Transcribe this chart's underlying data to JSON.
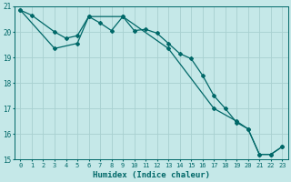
{
  "title": "",
  "xlabel": "Humidex (Indice chaleur)",
  "bg_color": "#c5e8e8",
  "grid_color": "#a8d0d0",
  "line_color": "#006868",
  "xlim": [
    -0.5,
    23.5
  ],
  "ylim": [
    15,
    21
  ],
  "xticks": [
    0,
    1,
    2,
    3,
    4,
    5,
    6,
    7,
    8,
    9,
    10,
    11,
    12,
    13,
    14,
    15,
    16,
    17,
    18,
    19,
    20,
    21,
    22,
    23
  ],
  "yticks": [
    15,
    16,
    17,
    18,
    19,
    20,
    21
  ],
  "line1_x": [
    0,
    1,
    3,
    4,
    5,
    6,
    7,
    8,
    9,
    10,
    11,
    12,
    13,
    14,
    15,
    16,
    17,
    18,
    19,
    20,
    21,
    22,
    23
  ],
  "line1_y": [
    20.85,
    20.65,
    20.0,
    19.75,
    19.85,
    20.6,
    20.35,
    20.05,
    20.6,
    20.05,
    20.1,
    19.95,
    19.55,
    19.15,
    18.95,
    18.3,
    17.5,
    17.0,
    16.45,
    16.2,
    15.2,
    15.2,
    15.5
  ],
  "line2_x": [
    0,
    3,
    5,
    6,
    9,
    13,
    17,
    19,
    20,
    21,
    22,
    23
  ],
  "line2_y": [
    20.85,
    19.35,
    19.55,
    20.6,
    20.6,
    19.35,
    17.0,
    16.5,
    16.2,
    15.2,
    15.2,
    15.5
  ]
}
